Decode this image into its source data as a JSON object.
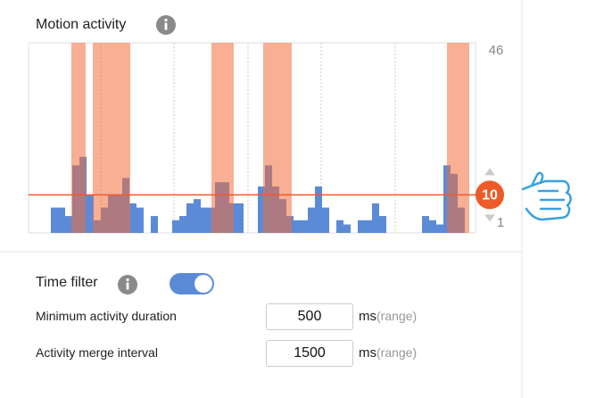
{
  "motion_activity": {
    "title": "Motion activity",
    "ylim": [
      1,
      46
    ],
    "yticks": [
      46,
      1
    ],
    "threshold": 10,
    "bar_color": "#5b8ad6",
    "threshold_color": "#f05a28",
    "values": [
      null,
      null,
      null,
      7,
      7,
      5,
      17,
      19,
      10,
      4,
      7,
      10,
      10,
      14,
      8,
      7,
      null,
      5,
      null,
      null,
      4,
      5,
      8,
      9,
      7,
      7,
      13,
      13,
      8,
      8,
      null,
      null,
      12,
      17,
      12,
      9,
      5,
      4,
      4,
      7,
      12,
      7,
      null,
      4,
      3,
      null,
      4,
      4,
      8,
      5,
      null,
      null,
      null,
      null,
      null,
      5,
      4,
      3,
      17,
      15,
      7,
      null
    ]
  },
  "time_filter": {
    "label": "Time filter",
    "enabled": true,
    "fields": [
      {
        "label": "Minimum activity duration",
        "value": 500,
        "unit": "ms",
        "hint": "(range)"
      },
      {
        "label": "Activity merge interval",
        "value": 1500,
        "unit": "ms",
        "hint": "(range)"
      }
    ]
  }
}
